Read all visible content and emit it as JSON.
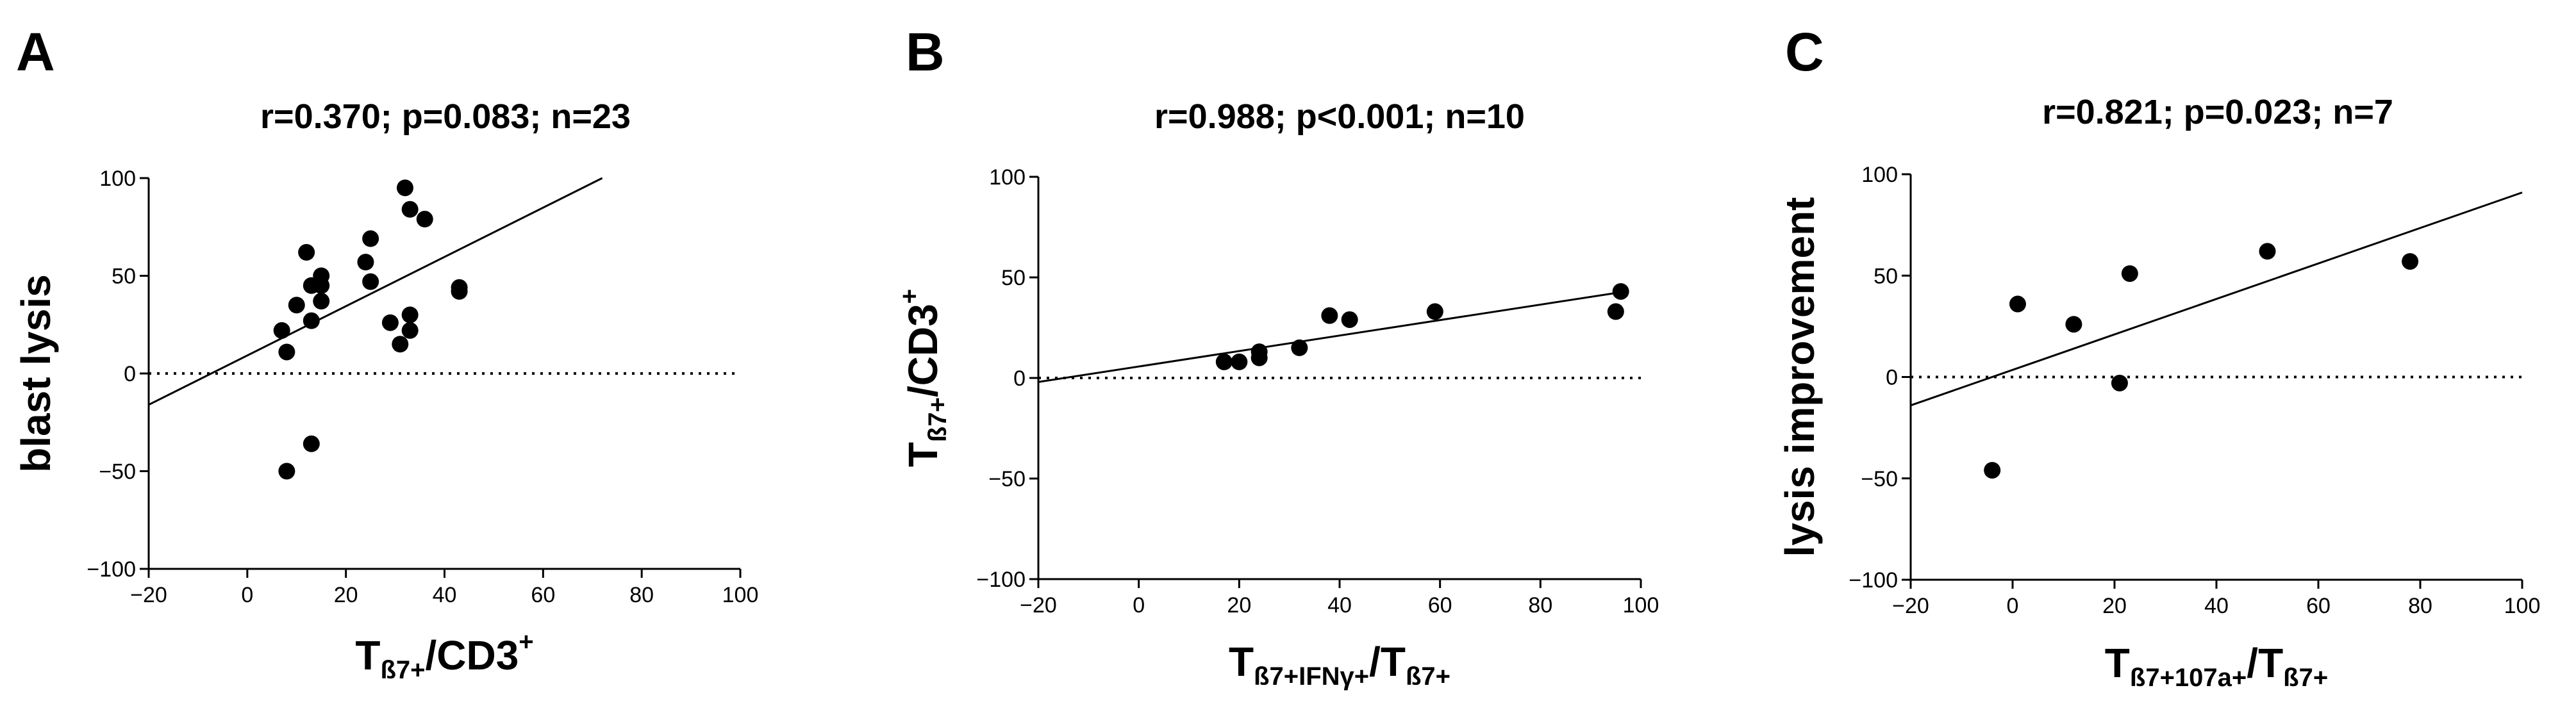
{
  "chart_data": [
    {
      "type": "scatter",
      "panel_label": "A",
      "title": "r=0.370; p=0.083; n=23",
      "xlabel": {
        "main": "T",
        "sub": "ß7+",
        "rest": "/CD3",
        "sup": "+"
      },
      "ylabel": {
        "main": "blast lysis"
      },
      "xlim": [
        -20,
        100
      ],
      "ylim": [
        -100,
        100
      ],
      "xticks": [
        -20,
        0,
        20,
        40,
        60,
        80,
        100
      ],
      "yticks": [
        -100,
        -50,
        0,
        50,
        100
      ],
      "x": [
        7,
        8,
        10,
        8,
        12,
        13,
        13,
        13,
        15,
        15,
        15,
        24,
        25,
        25,
        29,
        31,
        32,
        33,
        33,
        33,
        36,
        43,
        43
      ],
      "y": [
        22,
        11,
        35,
        -50,
        62,
        45,
        27,
        -36,
        37,
        45,
        50,
        57,
        47,
        69,
        26,
        15,
        95,
        84,
        22,
        30,
        79,
        42,
        44
      ],
      "regression": {
        "x": [
          -20,
          72
        ],
        "y": [
          -16,
          100
        ]
      },
      "reference_line": {
        "y": 0,
        "style": "dotted"
      }
    },
    {
      "type": "scatter",
      "panel_label": "B",
      "title": "r=0.988; p<0.001; n=10",
      "xlabel": {
        "main": "T",
        "sub": "ß7+IFNγ+",
        "rest": "/T",
        "sub2": "ß7+"
      },
      "ylabel": {
        "main": "T",
        "sub": "ß7+",
        "rest": "/CD3",
        "sup": "+"
      },
      "xlim": [
        -20,
        100
      ],
      "ylim": [
        -100,
        100
      ],
      "xticks": [
        -20,
        0,
        20,
        40,
        60,
        80,
        100
      ],
      "yticks": [
        -100,
        -50,
        0,
        50,
        100
      ],
      "x": [
        17,
        20,
        24,
        24,
        32,
        38,
        42,
        59,
        95,
        96
      ],
      "y": [
        8,
        8,
        10,
        13,
        15,
        31,
        29,
        33,
        33,
        43
      ],
      "regression": {
        "x": [
          -20,
          97
        ],
        "y": [
          -2,
          43
        ]
      },
      "reference_line": {
        "y": 0,
        "style": "dotted"
      }
    },
    {
      "type": "scatter",
      "panel_label": "C",
      "title": "r=0.821; p=0.023; n=7",
      "xlabel": {
        "main": "T",
        "sub": "ß7+107a+",
        "rest": "/T",
        "sub2": "ß7+"
      },
      "ylabel": {
        "main": "lysis improvement"
      },
      "xlim": [
        -20,
        100
      ],
      "ylim": [
        -100,
        100
      ],
      "xticks": [
        -20,
        0,
        20,
        40,
        60,
        80,
        100
      ],
      "yticks": [
        -100,
        -50,
        0,
        50,
        100
      ],
      "x": [
        -4,
        1,
        12,
        21,
        23,
        50,
        78
      ],
      "y": [
        -46,
        36,
        26,
        -3,
        51,
        62,
        57
      ],
      "regression": {
        "x": [
          -20,
          100
        ],
        "y": [
          -14,
          91
        ]
      },
      "reference_line": {
        "y": 0,
        "style": "dotted"
      }
    }
  ]
}
